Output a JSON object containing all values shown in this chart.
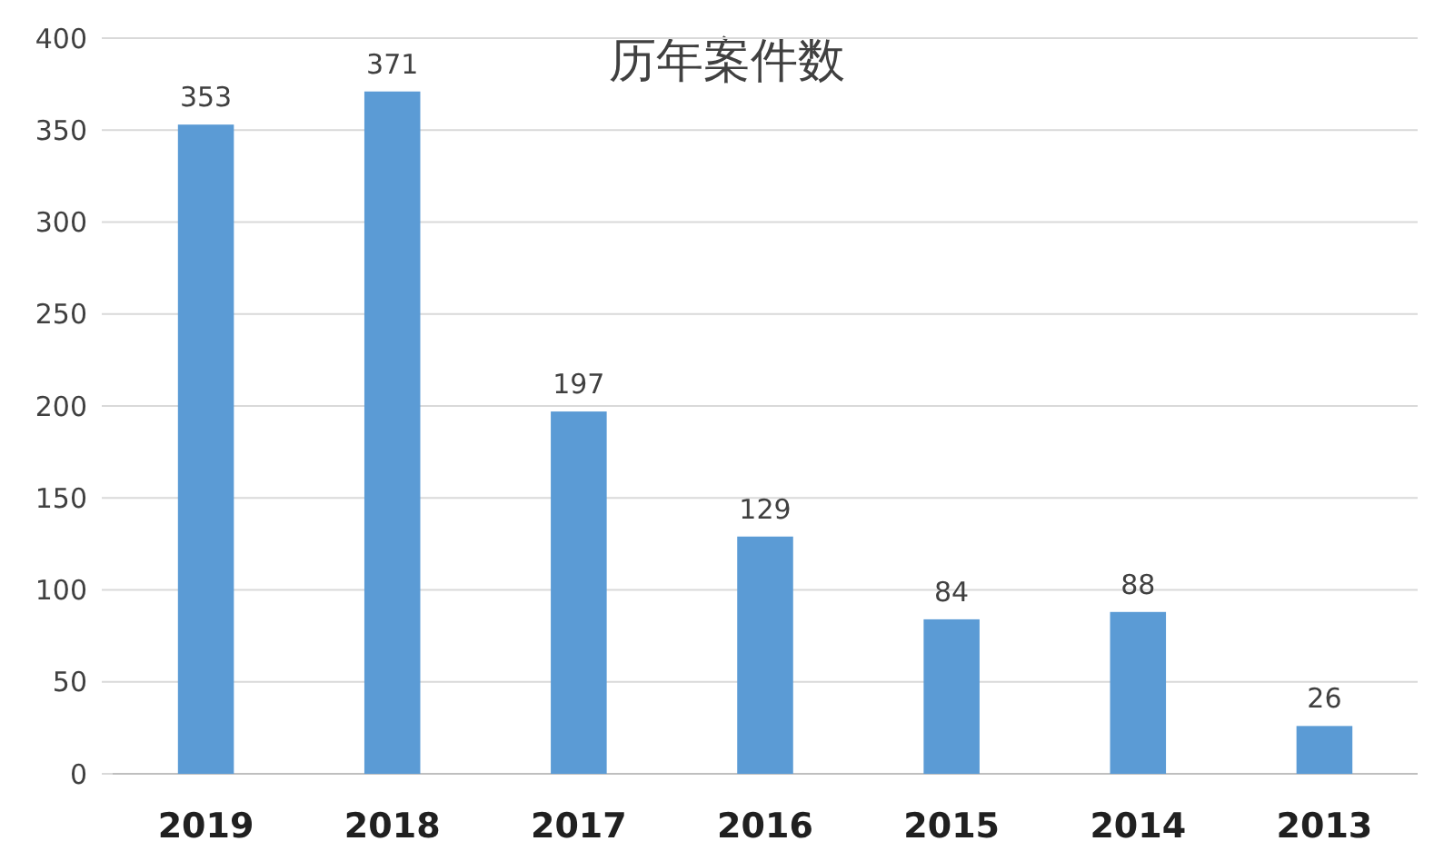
{
  "chart_data": {
    "type": "bar",
    "title": "历年案件数",
    "categories": [
      "2019",
      "2018",
      "2017",
      "2016",
      "2015",
      "2014",
      "2013"
    ],
    "values": [
      353,
      371,
      197,
      129,
      84,
      88,
      26
    ],
    "color": "#5b9bd5",
    "ylim": [
      0,
      400
    ],
    "yticks": [
      0,
      50,
      100,
      150,
      200,
      250,
      300,
      350,
      400
    ],
    "grid": "y",
    "data_labels": true
  }
}
